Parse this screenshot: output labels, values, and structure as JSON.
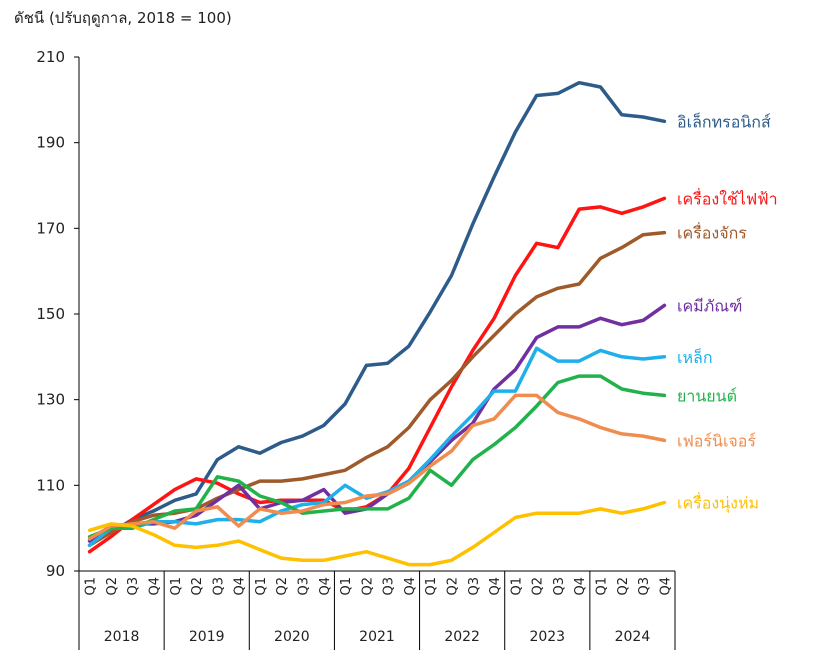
{
  "chart_data": {
    "type": "line",
    "ylabel": "ดัชนี (ปรับฤดูกาล, 2018 = 100)",
    "ylim": [
      90,
      210
    ],
    "yticks": [
      90,
      110,
      130,
      150,
      170,
      190,
      210
    ],
    "quarter_labels": [
      "Q1",
      "Q2",
      "Q3",
      "Q4"
    ],
    "years": [
      "2018",
      "2019",
      "2020",
      "2021",
      "2022",
      "2023",
      "2024"
    ],
    "grid": false,
    "legend": "inline-right",
    "series": [
      {
        "name": "อิเล็กทรอนิกส์",
        "color": "#2e5c8a",
        "values": [
          97,
          99,
          102,
          104,
          106.5,
          108,
          116,
          119,
          117.5,
          120,
          121.5,
          124,
          129,
          138,
          138.5,
          142.5,
          150.5,
          159,
          171,
          182,
          192.5,
          201,
          201.5,
          204,
          203,
          196.5,
          196,
          195
        ]
      },
      {
        "name": "เครื่องใช้ไฟฟ้า",
        "color": "#ff1414",
        "values": [
          94.5,
          98,
          102,
          105.5,
          109,
          111.5,
          110.5,
          108,
          106,
          106.5,
          106.5,
          106.5,
          104,
          105,
          108,
          114,
          123.5,
          133,
          141.5,
          149,
          159,
          166.5,
          165.5,
          174.5,
          175,
          173.5,
          175,
          177
        ]
      },
      {
        "name": "เครื่องจักร",
        "color": "#9e5a2a",
        "values": [
          96,
          99,
          101.5,
          103,
          103.5,
          104.5,
          107,
          109,
          111,
          111,
          111.5,
          112.5,
          113.5,
          116.5,
          119,
          123.5,
          130,
          134.5,
          140,
          145,
          150,
          154,
          156,
          157,
          163,
          165.5,
          168.5,
          169
        ]
      },
      {
        "name": "เคมีภัณฑ์",
        "color": "#7030a0",
        "values": [
          97,
          100.5,
          101,
          101,
          101.5,
          103,
          106.5,
          110,
          104.5,
          106,
          106.5,
          109,
          103.5,
          104.5,
          108,
          110.5,
          115.5,
          120.5,
          124.5,
          132.5,
          137,
          144.5,
          147,
          147,
          149,
          147.5,
          148.5,
          152
        ]
      },
      {
        "name": "เหล็ก",
        "color": "#1fb0ec",
        "values": [
          96,
          100,
          100,
          101.5,
          101.5,
          101,
          102,
          102,
          101.5,
          104,
          105.5,
          106,
          110,
          107,
          108.5,
          111,
          116,
          121.5,
          126.5,
          132,
          132,
          142,
          139,
          139,
          141.5,
          140,
          139.5,
          140
        ]
      },
      {
        "name": "ยานยนต์",
        "color": "#22b24c",
        "values": [
          98,
          100,
          100,
          102,
          104,
          104.5,
          112,
          111,
          107.5,
          106,
          103.5,
          104,
          104.5,
          104.5,
          104.5,
          107,
          113.5,
          110,
          116,
          119.5,
          123.5,
          128.5,
          134,
          135.5,
          135.5,
          132.5,
          131.5,
          131
        ]
      },
      {
        "name": "เฟอร์นิเจอร์",
        "color": "#ef8c4e",
        "values": [
          97.5,
          100.5,
          101,
          101.5,
          100,
          104,
          105,
          100.5,
          104.5,
          103.5,
          104,
          105.5,
          106,
          107.5,
          108,
          110.5,
          114.5,
          118,
          124,
          125.5,
          131,
          131,
          127,
          125.5,
          123.5,
          122,
          121.5,
          120.5
        ]
      },
      {
        "name": "เครื่องนุ่งห่ม",
        "color": "#ffc000",
        "values": [
          99.5,
          101,
          100.5,
          98.5,
          96,
          95.5,
          96,
          97,
          95,
          93,
          92.5,
          92.5,
          93.5,
          94.5,
          93,
          91.5,
          91.5,
          92.5,
          95.5,
          99,
          102.5,
          103.5,
          103.5,
          103.5,
          104.5,
          103.5,
          104.5,
          106
        ]
      }
    ]
  }
}
